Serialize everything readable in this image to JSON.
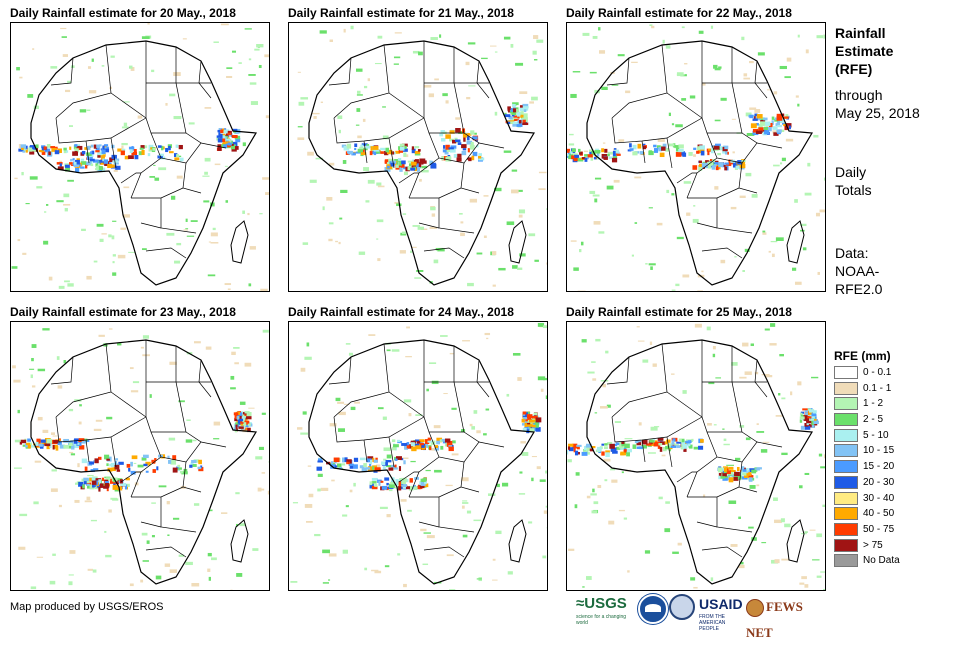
{
  "panels": [
    {
      "title": "Daily Rainfall estimate for 20 May., 2018",
      "seed": 20
    },
    {
      "title": "Daily Rainfall estimate for 21 May., 2018",
      "seed": 21
    },
    {
      "title": "Daily Rainfall estimate for 22 May., 2018",
      "seed": 22
    },
    {
      "title": "Daily Rainfall estimate for 23 May., 2018",
      "seed": 23
    },
    {
      "title": "Daily Rainfall estimate for 24 May., 2018",
      "seed": 24
    },
    {
      "title": "Daily Rainfall estimate for 25 May., 2018",
      "seed": 25
    }
  ],
  "sidebar": {
    "title_line1": "Rainfall",
    "title_line2": "Estimate",
    "title_line3": "(RFE)",
    "through_label": "through",
    "through_date": "May 25, 2018",
    "daily_label1": "Daily",
    "daily_label2": "Totals",
    "data_label": "Data:",
    "data_source1": "NOAA-",
    "data_source2": "RFE2.0"
  },
  "legend": {
    "title": "RFE (mm)",
    "items": [
      {
        "label": "0 - 0.1",
        "color": "#ffffff"
      },
      {
        "label": "0.1 - 1",
        "color": "#f0dcb9"
      },
      {
        "label": "1 - 2",
        "color": "#b4f5b4"
      },
      {
        "label": "2 - 5",
        "color": "#6be06b"
      },
      {
        "label": "5 - 10",
        "color": "#aaf0f0"
      },
      {
        "label": "10 - 15",
        "color": "#82c3f5"
      },
      {
        "label": "15 - 20",
        "color": "#4b9bff"
      },
      {
        "label": "20 - 30",
        "color": "#1e5ae6"
      },
      {
        "label": "30 - 40",
        "color": "#ffeb82"
      },
      {
        "label": "40 - 50",
        "color": "#ffaa00"
      },
      {
        "label": "50 - 75",
        "color": "#ff3c00"
      },
      {
        "label": "> 75",
        "color": "#a01414"
      },
      {
        "label": "No Data",
        "color": "#9a9a9a"
      }
    ]
  },
  "footer": {
    "credit": "Map produced by USGS/EROS",
    "logos": {
      "usgs": "≈USGS",
      "usgs_tagline": "science for a changing world",
      "usaid": "USAID",
      "usaid_tagline": "FROM THE AMERICAN PEOPLE",
      "fews": "FEWS NET"
    }
  }
}
